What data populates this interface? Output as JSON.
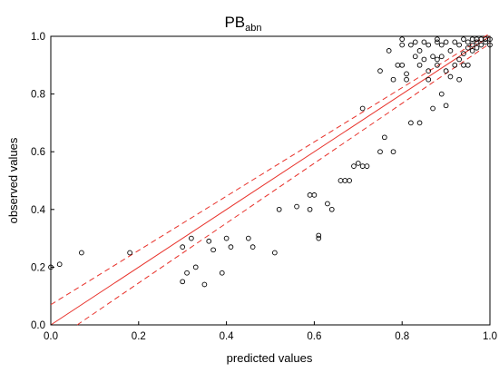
{
  "chart_data": {
    "type": "scatter",
    "title": "PB",
    "title_subscript": "abn",
    "xlabel": "predicted values",
    "ylabel": "observed values",
    "xlim": [
      0,
      1
    ],
    "ylim": [
      0,
      1
    ],
    "xticks": [
      "0.0",
      "0.2",
      "0.4",
      "0.6",
      "0.8",
      "1.0"
    ],
    "yticks": [
      "0.0",
      "0.2",
      "0.4",
      "0.6",
      "0.8",
      "1.0"
    ],
    "grid": false,
    "colors": {
      "points": "#000000",
      "fit_line": "#e8312a",
      "axes": "#000000"
    },
    "fit_line": {
      "x": [
        0,
        1
      ],
      "y": [
        0,
        1
      ],
      "style": "solid"
    },
    "confidence_band": {
      "style": "dashed",
      "upper": {
        "x": [
          0,
          1
        ],
        "y": [
          0.07,
          1.01
        ]
      },
      "lower": {
        "x": [
          0.06,
          1
        ],
        "y": [
          0,
          0.975
        ]
      }
    },
    "points": [
      [
        0.0,
        0.2
      ],
      [
        0.02,
        0.21
      ],
      [
        0.07,
        0.25
      ],
      [
        0.18,
        0.25
      ],
      [
        0.3,
        0.27
      ],
      [
        0.3,
        0.15
      ],
      [
        0.31,
        0.18
      ],
      [
        0.32,
        0.3
      ],
      [
        0.33,
        0.2
      ],
      [
        0.35,
        0.14
      ],
      [
        0.36,
        0.29
      ],
      [
        0.37,
        0.26
      ],
      [
        0.39,
        0.18
      ],
      [
        0.4,
        0.3
      ],
      [
        0.41,
        0.27
      ],
      [
        0.45,
        0.3
      ],
      [
        0.46,
        0.27
      ],
      [
        0.51,
        0.25
      ],
      [
        0.52,
        0.4
      ],
      [
        0.56,
        0.41
      ],
      [
        0.59,
        0.45
      ],
      [
        0.59,
        0.4
      ],
      [
        0.6,
        0.45
      ],
      [
        0.61,
        0.31
      ],
      [
        0.61,
        0.3
      ],
      [
        0.63,
        0.42
      ],
      [
        0.64,
        0.4
      ],
      [
        0.66,
        0.5
      ],
      [
        0.67,
        0.5
      ],
      [
        0.68,
        0.5
      ],
      [
        0.69,
        0.55
      ],
      [
        0.7,
        0.56
      ],
      [
        0.71,
        0.55
      ],
      [
        0.72,
        0.55
      ],
      [
        0.71,
        0.75
      ],
      [
        0.75,
        0.6
      ],
      [
        0.75,
        0.88
      ],
      [
        0.76,
        0.65
      ],
      [
        0.77,
        0.95
      ],
      [
        0.78,
        0.6
      ],
      [
        0.78,
        0.85
      ],
      [
        0.79,
        0.9
      ],
      [
        0.8,
        0.97
      ],
      [
        0.8,
        0.99
      ],
      [
        0.8,
        0.9
      ],
      [
        0.81,
        0.85
      ],
      [
        0.81,
        0.87
      ],
      [
        0.82,
        0.7
      ],
      [
        0.82,
        0.97
      ],
      [
        0.83,
        0.93
      ],
      [
        0.83,
        0.98
      ],
      [
        0.84,
        0.7
      ],
      [
        0.84,
        0.95
      ],
      [
        0.84,
        0.9
      ],
      [
        0.85,
        0.98
      ],
      [
        0.85,
        0.92
      ],
      [
        0.86,
        0.97
      ],
      [
        0.86,
        0.88
      ],
      [
        0.86,
        0.85
      ],
      [
        0.87,
        0.75
      ],
      [
        0.87,
        0.93
      ],
      [
        0.88,
        0.99
      ],
      [
        0.88,
        0.98
      ],
      [
        0.88,
        0.92
      ],
      [
        0.88,
        0.9
      ],
      [
        0.89,
        0.8
      ],
      [
        0.89,
        0.97
      ],
      [
        0.89,
        0.93
      ],
      [
        0.9,
        0.76
      ],
      [
        0.9,
        0.88
      ],
      [
        0.9,
        0.98
      ],
      [
        0.91,
        0.95
      ],
      [
        0.91,
        0.86
      ],
      [
        0.92,
        0.98
      ],
      [
        0.92,
        0.9
      ],
      [
        0.93,
        0.85
      ],
      [
        0.93,
        0.97
      ],
      [
        0.93,
        0.92
      ],
      [
        0.94,
        0.99
      ],
      [
        0.94,
        0.94
      ],
      [
        0.94,
        0.9
      ],
      [
        0.95,
        0.98
      ],
      [
        0.95,
        0.96
      ],
      [
        0.95,
        0.9
      ],
      [
        0.96,
        0.99
      ],
      [
        0.96,
        0.97
      ],
      [
        0.96,
        0.95
      ],
      [
        0.97,
        0.99
      ],
      [
        0.97,
        0.98
      ],
      [
        0.97,
        0.96
      ],
      [
        0.98,
        0.99
      ],
      [
        0.98,
        0.97
      ],
      [
        0.99,
        0.99
      ],
      [
        0.99,
        0.98
      ],
      [
        1.0,
        0.99
      ],
      [
        1.0,
        0.97
      ]
    ]
  }
}
